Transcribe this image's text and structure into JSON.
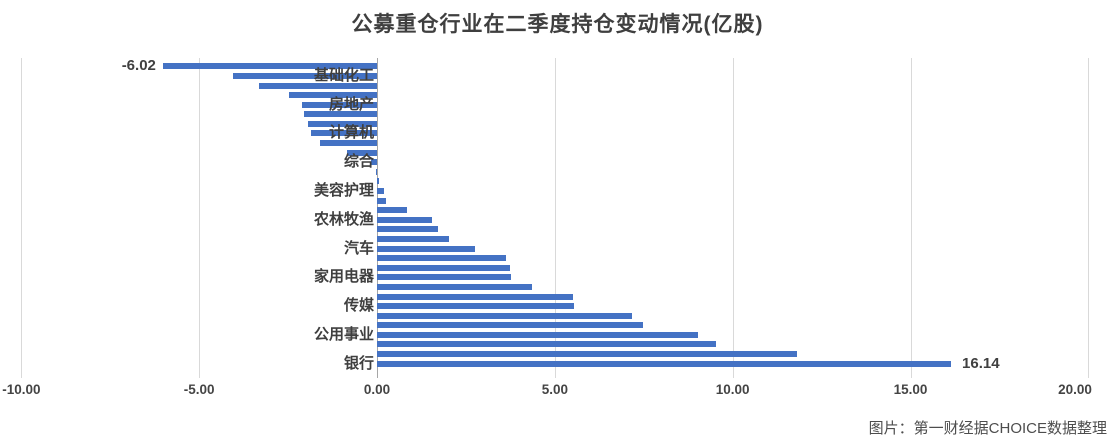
{
  "title": "公募重仓行业在二季度持仓变动情况(亿股)",
  "source_caption": "图片：第一财经据CHOICE数据整理",
  "colors": {
    "bar": "#4472C4",
    "gridline": "#D9D9D9",
    "zero_axis": "#A6A6A6",
    "title_text": "#3F3F3F",
    "label_text": "#404040"
  },
  "chart_data": {
    "type": "bar",
    "orientation": "horizontal",
    "title": "公募重仓行业在二季度持仓变动情况(亿股)",
    "xlabel": "",
    "ylabel": "",
    "xlim": [
      -10,
      20
    ],
    "x_ticks": [
      -10,
      -5,
      0,
      5,
      10,
      15,
      20
    ],
    "x_tick_labels": [
      "-10.00",
      "-5.00",
      "0.00",
      "5.00",
      "10.00",
      "15.00",
      "20.00"
    ],
    "grid": "vertical",
    "legend": "none",
    "categories": [
      "",
      "基础化工",
      "",
      "",
      "房地产",
      "",
      "",
      "计算机",
      "",
      "",
      "综合",
      "",
      "",
      "美容护理",
      "",
      "",
      "农林牧渔",
      "",
      "",
      "汽车",
      "",
      "",
      "家用电器",
      "",
      "",
      "传媒",
      "",
      "",
      "公用事业",
      "",
      "",
      "银行"
    ],
    "values": [
      -6.02,
      -4.05,
      -3.32,
      -2.47,
      -2.11,
      -2.05,
      -1.95,
      -1.85,
      -1.6,
      -0.85,
      -0.17,
      -0.02,
      0.05,
      0.2,
      0.26,
      0.84,
      1.55,
      1.72,
      2.02,
      2.76,
      3.63,
      3.74,
      3.76,
      4.35,
      5.5,
      5.53,
      7.16,
      7.49,
      9.03,
      9.53,
      11.8,
      16.14
    ],
    "data_labels": [
      {
        "index": 0,
        "text": "-6.02"
      },
      {
        "index": 31,
        "text": "16.14"
      }
    ]
  }
}
